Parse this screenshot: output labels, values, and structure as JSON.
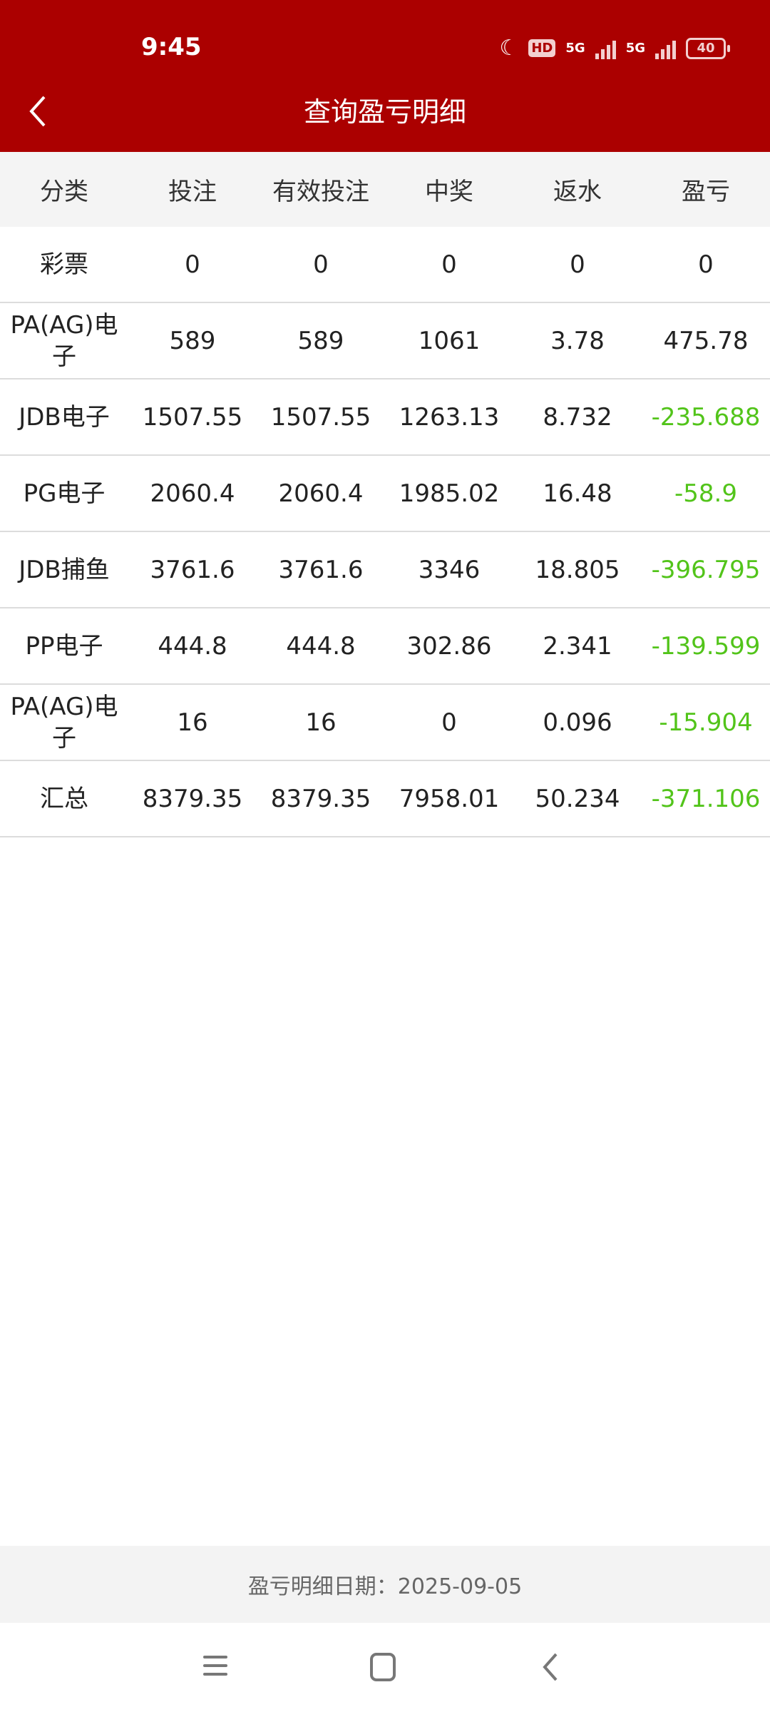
{
  "status_bar": {
    "time": "9:45",
    "hd": "HD",
    "net1": "5G",
    "net2": "5G",
    "battery": "40"
  },
  "header": {
    "title": "查询盈亏明细",
    "back_icon": "chevron-left-icon"
  },
  "table": {
    "columns": [
      "分类",
      "投注",
      "有效投注",
      "中奖",
      "返水",
      "盈亏"
    ],
    "rows": [
      [
        "彩票",
        "0",
        "0",
        "0",
        "0",
        "0"
      ],
      [
        "PA(AG)电子",
        "589",
        "589",
        "1061",
        "3.78",
        "475.78"
      ],
      [
        "JDB电子",
        "1507.55",
        "1507.55",
        "1263.13",
        "8.732",
        "-235.688"
      ],
      [
        "PG电子",
        "2060.4",
        "2060.4",
        "1985.02",
        "16.48",
        "-58.9"
      ],
      [
        "JDB捕鱼",
        "3761.6",
        "3761.6",
        "3346",
        "18.805",
        "-396.795"
      ],
      [
        "PP电子",
        "444.8",
        "444.8",
        "302.86",
        "2.341",
        "-139.599"
      ],
      [
        "PA(AG)电子",
        "16",
        "16",
        "0",
        "0.096",
        "-15.904"
      ],
      [
        "汇总",
        "8379.35",
        "8379.35",
        "7958.01",
        "50.234",
        "-371.106"
      ]
    ]
  },
  "footer": {
    "date_text": "盈亏明细日期：2025-09-05"
  },
  "colors": {
    "brand": "#ab0000",
    "loss": "#52c41a"
  },
  "nav_bar": {
    "icons": [
      "menu-icon",
      "home-icon",
      "back-icon"
    ]
  }
}
